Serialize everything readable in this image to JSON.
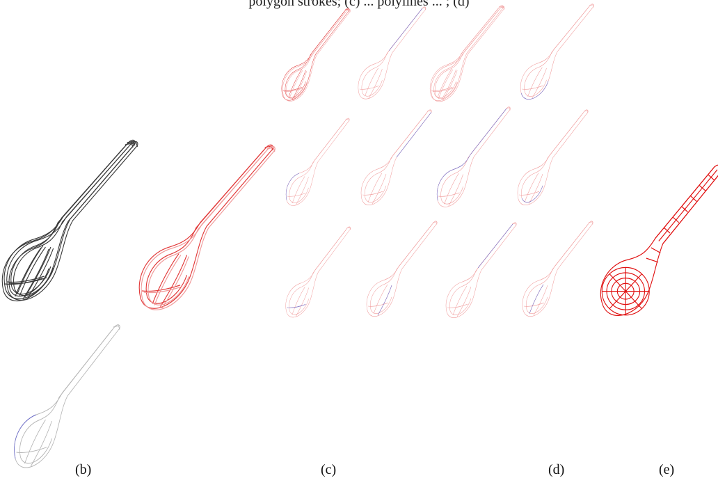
{
  "caption_fragment": "polygon strokes; (c) ... polylines ... ; (d)",
  "panel_labels": {
    "b": "(b)",
    "c": "(c)",
    "d": "(d)",
    "e": "(e)"
  },
  "colors": {
    "stroke_black": "#3a3a3a",
    "stroke_gray": "#b5b5b5",
    "stroke_red": "#e23a3a",
    "stroke_pink": "#f09a9a",
    "stroke_blue": "#6a6acb",
    "mesh_red": "#e01010"
  }
}
